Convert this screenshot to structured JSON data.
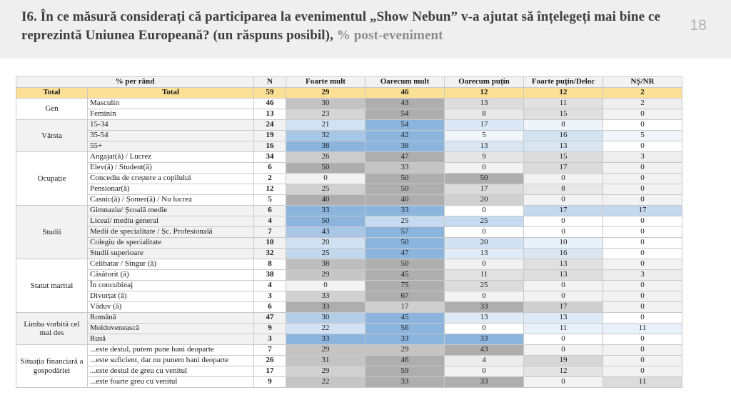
{
  "page": {
    "title_main": "I6. În ce măsură considerați că participarea la evenimentul „Show Nebun” v-a ajutat să înțelegeți mai bine ce reprezintă Uniunea Europeană? (un răspuns posibil), ",
    "title_suffix": "% post-eveniment",
    "page_number": "18"
  },
  "colors": {
    "header_band": "#efefef",
    "title_text": "#3d3d3d",
    "title_suffix": "#8c8c8c",
    "page_number": "#b1b1b1",
    "table_border": "#c9c9c9",
    "header_row_bg": "#f2f2f2",
    "total_row_bg": "#fbe095",
    "band_gray": "#f2f2f2",
    "band_white": "#ffffff",
    "heat_blue_min": "#ffffff",
    "heat_blue": "#8cb5de",
    "heat_gray_min": "#f2f2f2",
    "heat_gray": "#aeaeae"
  },
  "chart_data": {
    "type": "table",
    "title": "I6. În ce măsură considerați că participarea la evenimentul „Show Nebun” v-a ajutat să înțelegeți mai bine ce reprezintă Uniunea Europeană? (un răspuns posibil), % post-eveniment",
    "layout_hints": {
      "value_unit": "% per rând",
      "cell_shading": "heatmap scaled to each row's maximum; blue scheme on gray-banded groups, gray scheme on white-banded groups",
      "total_row_highlight": "yellow"
    },
    "columns": [
      "% per rând",
      "N",
      "Foarte mult",
      "Oarecum mult",
      "Oarecum puțin",
      "Foarte puțin/Deloc",
      "NȘ/NR"
    ],
    "total": {
      "group": "Total",
      "label": "Total",
      "n": 59,
      "values": [
        29,
        46,
        12,
        12,
        2
      ]
    },
    "groups": [
      {
        "label": "Gen",
        "band": "white",
        "scheme": "gray",
        "rows": [
          {
            "label": "Masculin",
            "n": 46,
            "values": [
              30,
              43,
              13,
              11,
              2
            ]
          },
          {
            "label": "Feminin",
            "n": 13,
            "values": [
              23,
              54,
              8,
              15,
              0
            ]
          }
        ]
      },
      {
        "label": "Vârsta",
        "band": "gray",
        "scheme": "blue",
        "rows": [
          {
            "label": "15-34",
            "n": 24,
            "values": [
              21,
              54,
              17,
              8,
              0
            ]
          },
          {
            "label": "35-54",
            "n": 19,
            "values": [
              32,
              42,
              5,
              16,
              5
            ]
          },
          {
            "label": "55+",
            "n": 16,
            "values": [
              38,
              38,
              13,
              13,
              0
            ]
          }
        ]
      },
      {
        "label": "Ocupație",
        "band": "white",
        "scheme": "gray",
        "rows": [
          {
            "label": "Angajat(ă) / Lucrez",
            "n": 34,
            "values": [
              26,
              47,
              9,
              15,
              3
            ]
          },
          {
            "label": "Elev(ă) / Student(ă)",
            "n": 6,
            "values": [
              50,
              33,
              0,
              17,
              0
            ]
          },
          {
            "label": "Concediu de creștere a copilului",
            "n": 2,
            "values": [
              0,
              50,
              50,
              0,
              0
            ]
          },
          {
            "label": "Pensionar(ă)",
            "n": 12,
            "values": [
              25,
              50,
              17,
              8,
              0
            ]
          },
          {
            "label": "Casnic(ă) / Șomer(ă) / Nu lucrez",
            "n": 5,
            "values": [
              40,
              40,
              20,
              0,
              0
            ]
          }
        ]
      },
      {
        "label": "Studii",
        "band": "gray",
        "scheme": "blue",
        "rows": [
          {
            "label": "Gimnaziu/ Școală medie",
            "n": 6,
            "values": [
              33,
              33,
              0,
              17,
              17
            ]
          },
          {
            "label": "Liceal/ mediu general",
            "n": 4,
            "values": [
              50,
              25,
              25,
              0,
              0
            ]
          },
          {
            "label": "Medii de specialitate / Șc. Profesională",
            "n": 7,
            "values": [
              43,
              57,
              0,
              0,
              0
            ]
          },
          {
            "label": "Colegiu de specialitate",
            "n": 10,
            "values": [
              20,
              50,
              20,
              10,
              0
            ]
          },
          {
            "label": "Studii superioare",
            "n": 32,
            "values": [
              25,
              47,
              13,
              16,
              0
            ]
          }
        ]
      },
      {
        "label": "Statut marital",
        "band": "white",
        "scheme": "gray",
        "rows": [
          {
            "label": "Celibatar / Singur (ă)",
            "n": 8,
            "values": [
              38,
              50,
              0,
              13,
              0
            ]
          },
          {
            "label": "Căsătorit (ă)",
            "n": 38,
            "values": [
              29,
              45,
              11,
              13,
              3
            ]
          },
          {
            "label": "În concubinaj",
            "n": 4,
            "values": [
              0,
              75,
              25,
              0,
              0
            ]
          },
          {
            "label": "Divorțat (ă)",
            "n": 3,
            "values": [
              33,
              67,
              0,
              0,
              0
            ]
          },
          {
            "label": "Văduv (ă)",
            "n": 6,
            "values": [
              33,
              17,
              33,
              17,
              0
            ]
          }
        ]
      },
      {
        "label": "Limba vorbită cel mai des",
        "band": "gray",
        "scheme": "blue",
        "rows": [
          {
            "label": "Română",
            "n": 47,
            "values": [
              30,
              45,
              13,
              13,
              0
            ]
          },
          {
            "label": "Moldovenească",
            "n": 9,
            "values": [
              22,
              56,
              0,
              11,
              11
            ]
          },
          {
            "label": "Rusă",
            "n": 3,
            "values": [
              33,
              33,
              33,
              0,
              0
            ]
          }
        ]
      },
      {
        "label": "Situația financiară a gospodăriei",
        "band": "white",
        "scheme": "gray",
        "rows": [
          {
            "label": "...este destul, putem pune bani deoparte",
            "n": 7,
            "values": [
              29,
              29,
              43,
              0,
              0
            ]
          },
          {
            "label": "...este suficient, dar nu punem bani deoparte",
            "n": 26,
            "values": [
              31,
              46,
              4,
              19,
              0
            ]
          },
          {
            "label": "...este destul de greu cu venitul",
            "n": 17,
            "values": [
              29,
              59,
              0,
              12,
              0
            ]
          },
          {
            "label": "...este foarte greu cu venitul",
            "n": 9,
            "values": [
              22,
              33,
              33,
              0,
              11
            ]
          }
        ]
      }
    ]
  }
}
